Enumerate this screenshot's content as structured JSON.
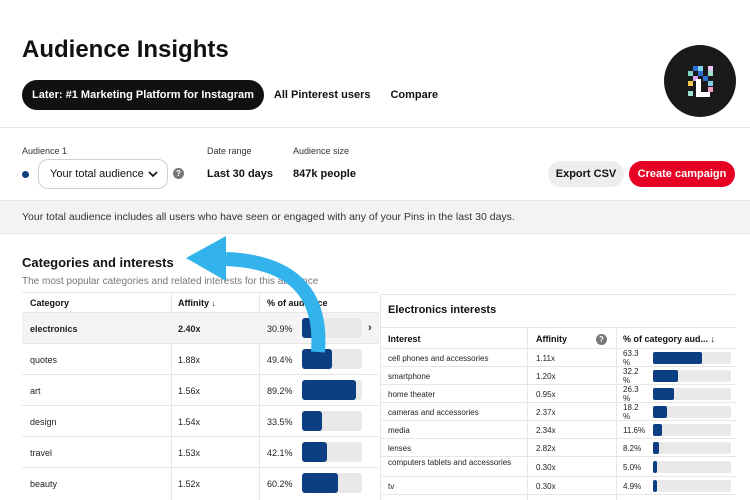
{
  "page": {
    "title": "Audience Insights",
    "tabs": [
      {
        "label": "Later: #1 Marketing Platform for Instagram",
        "active": true
      },
      {
        "label": "All Pinterest users",
        "active": false
      },
      {
        "label": "Compare",
        "active": false
      }
    ]
  },
  "controls": {
    "audience_label": "Audience 1",
    "audience_value": "Your total audience",
    "date_range_label": "Date range",
    "date_range_value": "Last 30 days",
    "audience_size_label": "Audience size",
    "audience_size_value": "847k people",
    "export_label": "Export CSV",
    "create_label": "Create campaign"
  },
  "info_text": "Your total audience includes all users who have seen or engaged with any of your Pins in the last 30 days.",
  "section": {
    "title": "Categories and interests",
    "subtitle": "The most popular categories and related interests for this audience"
  },
  "categories_table": {
    "headers": [
      "Category",
      "Affinity",
      "% of audience"
    ],
    "rows": [
      {
        "category": "electronics",
        "affinity": "2.40x",
        "percent_label": "30.9%",
        "percent": 30.9,
        "selected": true
      },
      {
        "category": "quotes",
        "affinity": "1.88x",
        "percent_label": "49.4%",
        "percent": 49.4,
        "selected": false
      },
      {
        "category": "art",
        "affinity": "1.56x",
        "percent_label": "89.2%",
        "percent": 89.2,
        "selected": false
      },
      {
        "category": "design",
        "affinity": "1.54x",
        "percent_label": "33.5%",
        "percent": 33.5,
        "selected": false
      },
      {
        "category": "travel",
        "affinity": "1.53x",
        "percent_label": "42.1%",
        "percent": 42.1,
        "selected": false
      },
      {
        "category": "beauty",
        "affinity": "1.52x",
        "percent_label": "60.2%",
        "percent": 60.2,
        "selected": false
      }
    ]
  },
  "interests_panel": {
    "title": "Electronics interests",
    "headers": [
      "Interest",
      "Affinity",
      "% of category aud..."
    ],
    "rows": [
      {
        "interest": "cell phones and accessories",
        "affinity": "1.11x",
        "percent_label": "63.3 %",
        "percent": 63.3
      },
      {
        "interest": "smartphone",
        "affinity": "1.20x",
        "percent_label": "32.2 %",
        "percent": 32.2
      },
      {
        "interest": "home theater",
        "affinity": "0.95x",
        "percent_label": "26.3 %",
        "percent": 26.3
      },
      {
        "interest": "cameras and accessories",
        "affinity": "2.37x",
        "percent_label": "18.2 %",
        "percent": 18.2
      },
      {
        "interest": "media",
        "affinity": "2.34x",
        "percent_label": "11.6%",
        "percent": 11.6
      },
      {
        "interest": "lenses",
        "affinity": "2.82x",
        "percent_label": "8.2%",
        "percent": 8.2
      },
      {
        "interest": "computers tablets and accessories",
        "affinity": "0.30x",
        "percent_label": "5.0%",
        "percent": 5.0
      },
      {
        "interest": "tv",
        "affinity": "0.30x",
        "percent_label": "4.9%",
        "percent": 4.9
      }
    ]
  },
  "colors": {
    "bar": "#0b3f82",
    "accent_red": "#e60023",
    "arrow": "#33b3ec"
  }
}
